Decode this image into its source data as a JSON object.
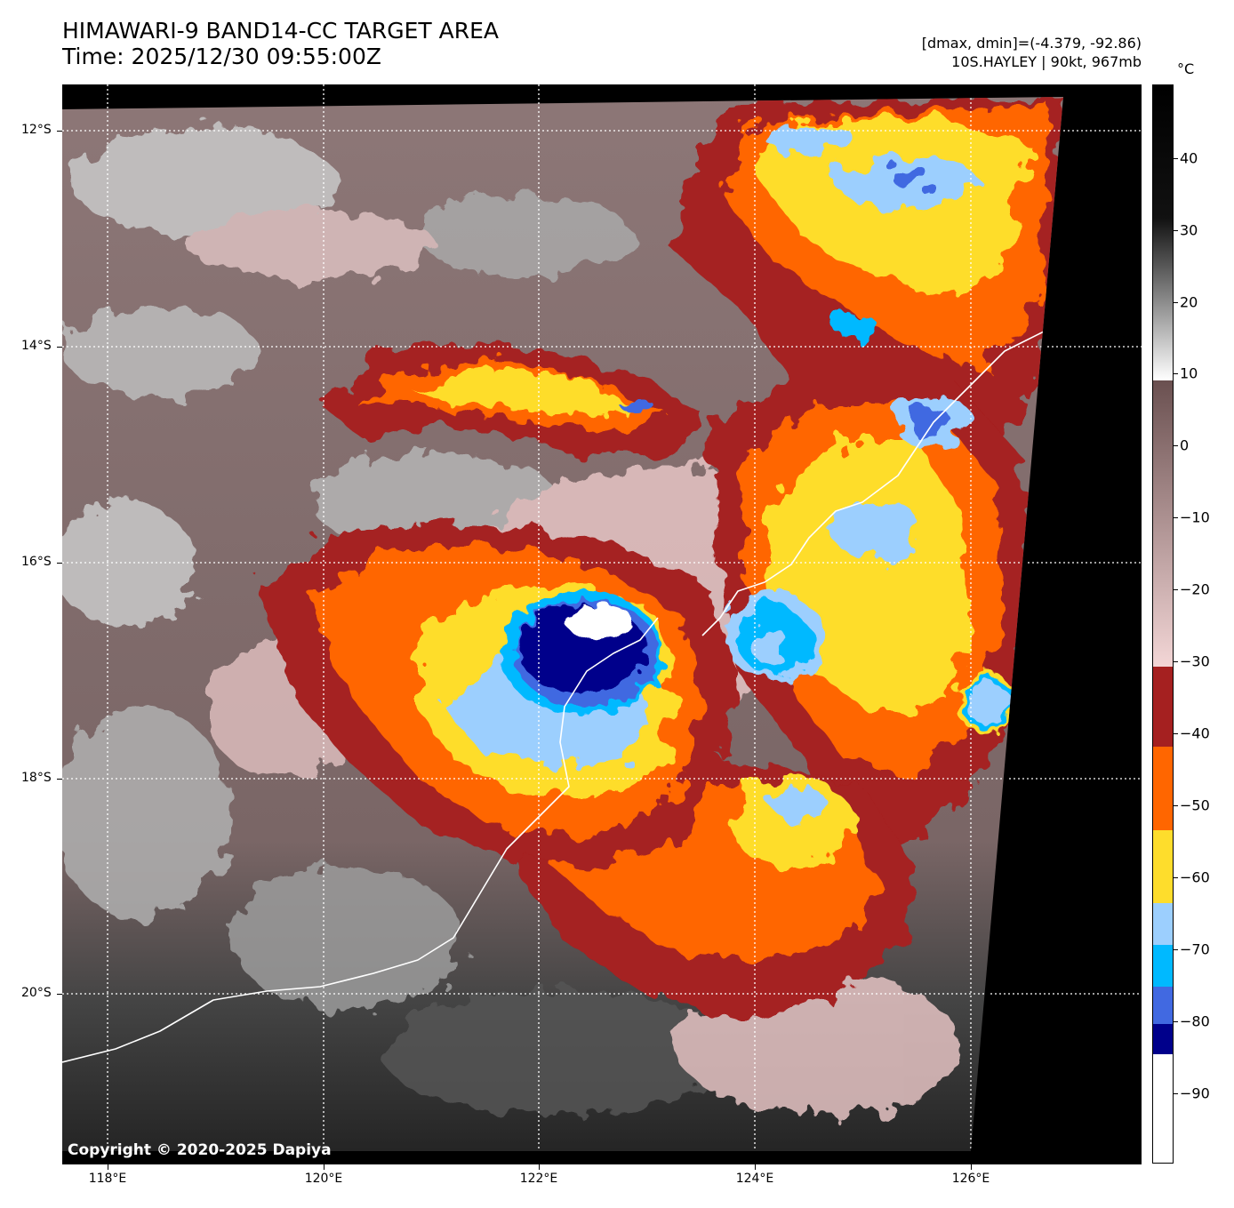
{
  "header": {
    "title_line1": "HIMAWARI-9 BAND14-CC TARGET AREA",
    "title_line2": "Time: 2025/12/30 09:55:00Z",
    "info_line1": "[dmax, dmin]=(-4.379, -92.86)",
    "info_line2": "10S.HAYLEY | 90kt, 967mb"
  },
  "map": {
    "copyright": "Copyright © 2020-2025 Dapiya",
    "lat_labels": [
      "12°S",
      "14°S",
      "16°S",
      "18°S",
      "20°S"
    ],
    "lon_labels": [
      "118°E",
      "120°E",
      "122°E",
      "124°E",
      "126°E"
    ],
    "cloud_colors": {
      "warm_gray": "#8a7474",
      "cold_pink": "#e8c8c8",
      "dark_red": "#a52020",
      "orange": "#ff6600",
      "yellow": "#fedd2c",
      "light_blue": "#9ccffe",
      "cyan": "#00b9ff",
      "royal_blue": "#4169e1",
      "navy": "#00008b",
      "white": "#ffffff"
    },
    "coastline_color": "#ffffff"
  },
  "colorbar": {
    "unit": "°C",
    "labels": [
      "40",
      "30",
      "20",
      "10",
      "0",
      "−10",
      "−20",
      "−30",
      "−40",
      "−50",
      "−60",
      "−70",
      "−80",
      "−90"
    ]
  }
}
